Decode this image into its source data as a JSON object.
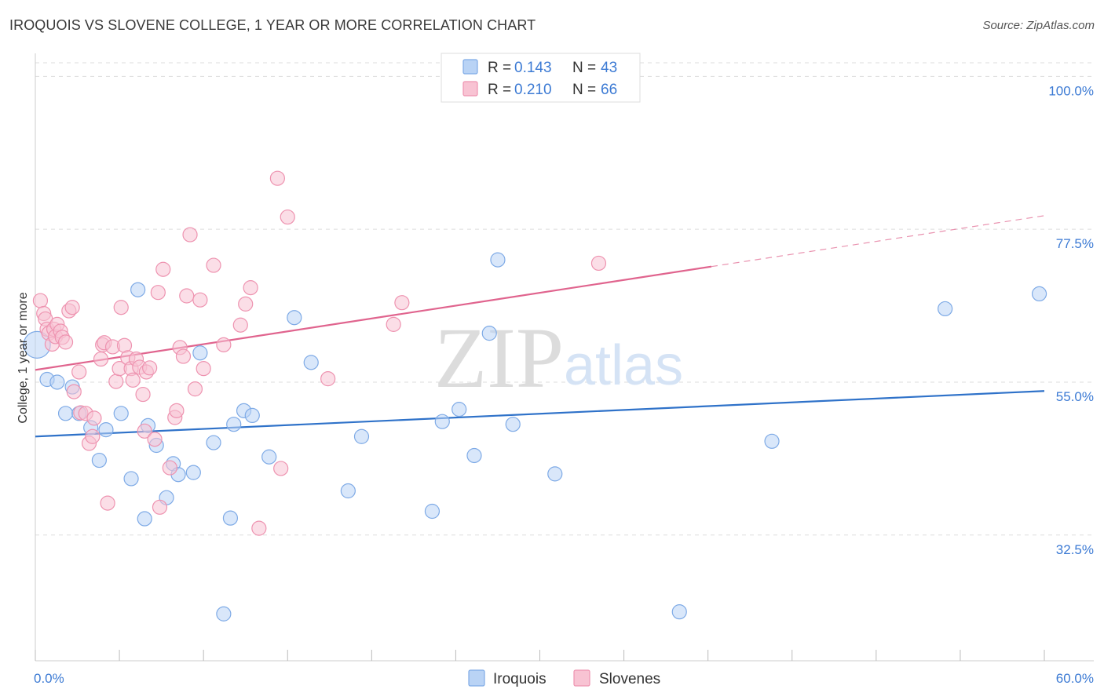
{
  "title": "IROQUOIS VS SLOVENE COLLEGE, 1 YEAR OR MORE CORRELATION CHART",
  "source": "Source: ZipAtlas.com",
  "watermark": {
    "zip": "ZIP",
    "atlas": "atlas"
  },
  "colors": {
    "iroquois_fill": "#b9d3f5",
    "iroquois_stroke": "#7eaae6",
    "iroquois_line": "#2f72c9",
    "slovenes_fill": "#f8c3d3",
    "slovenes_stroke": "#ee93b0",
    "slovenes_line": "#e0648e",
    "tick": "#3d7bd4",
    "grid": "#dddddd"
  },
  "legend": {
    "iroquois": {
      "r_label": "R = ",
      "r_value": "0.143",
      "n_label": "N = ",
      "n_value": "43"
    },
    "slovenes": {
      "r_label": "R = ",
      "r_value": "0.210",
      "n_label": "N = ",
      "n_value": "66"
    }
  },
  "chart_data": {
    "type": "scatter",
    "title": "IROQUOIS VS SLOVENE COLLEGE, 1 YEAR OR MORE CORRELATION CHART",
    "xlabel": "",
    "ylabel": "College, 1 year or more",
    "xlim": [
      0,
      60
    ],
    "ylim": [
      14,
      102
    ],
    "x_tick_labels": [
      "0.0%",
      "60.0%"
    ],
    "y_ticks": [
      32.5,
      55.0,
      77.5,
      100.0
    ],
    "y_tick_labels": [
      "32.5%",
      "55.0%",
      "77.5%",
      "100.0%"
    ],
    "legend_position": "top-center",
    "series": [
      {
        "name": "Iroquois",
        "r": 0.143,
        "n": 43,
        "trend": {
          "x0": 0,
          "y0": 47.0,
          "x1": 60,
          "y1": 53.7,
          "solid_until": 60
        },
        "points": [
          [
            0.1,
            60.5
          ],
          [
            0.7,
            55.4
          ],
          [
            1.3,
            55.0
          ],
          [
            1.8,
            50.4
          ],
          [
            2.2,
            54.3
          ],
          [
            2.6,
            50.4
          ],
          [
            3.3,
            48.3
          ],
          [
            3.8,
            43.5
          ],
          [
            4.2,
            48.0
          ],
          [
            5.1,
            50.4
          ],
          [
            5.7,
            40.8
          ],
          [
            6.1,
            68.6
          ],
          [
            6.5,
            34.9
          ],
          [
            6.7,
            48.6
          ],
          [
            7.2,
            45.7
          ],
          [
            7.8,
            38.0
          ],
          [
            8.2,
            43.0
          ],
          [
            8.5,
            41.4
          ],
          [
            9.4,
            41.7
          ],
          [
            9.8,
            59.3
          ],
          [
            10.6,
            46.1
          ],
          [
            11.2,
            20.9
          ],
          [
            11.6,
            35.0
          ],
          [
            11.8,
            48.8
          ],
          [
            12.4,
            50.8
          ],
          [
            12.9,
            50.1
          ],
          [
            13.9,
            44.0
          ],
          [
            15.4,
            64.5
          ],
          [
            16.4,
            57.9
          ],
          [
            18.6,
            39.0
          ],
          [
            19.4,
            47.0
          ],
          [
            23.6,
            36.0
          ],
          [
            24.2,
            49.2
          ],
          [
            25.2,
            51.0
          ],
          [
            26.1,
            44.2
          ],
          [
            27.0,
            62.2
          ],
          [
            27.5,
            73.0
          ],
          [
            28.4,
            48.8
          ],
          [
            30.9,
            41.5
          ],
          [
            38.3,
            21.2
          ],
          [
            43.8,
            46.3
          ],
          [
            54.1,
            65.8
          ],
          [
            59.7,
            68.0
          ]
        ]
      },
      {
        "name": "Slovenes",
        "r": 0.21,
        "n": 66,
        "trend": {
          "x0": 0,
          "y0": 56.8,
          "x1": 60,
          "y1": 79.5,
          "solid_until": 40.2
        },
        "points": [
          [
            0.3,
            67.0
          ],
          [
            0.5,
            65.1
          ],
          [
            0.6,
            64.3
          ],
          [
            0.7,
            62.8
          ],
          [
            0.8,
            62.2
          ],
          [
            1.0,
            60.6
          ],
          [
            1.1,
            62.8
          ],
          [
            1.2,
            61.7
          ],
          [
            1.3,
            63.5
          ],
          [
            1.5,
            62.5
          ],
          [
            1.6,
            61.6
          ],
          [
            1.8,
            60.9
          ],
          [
            2.0,
            65.5
          ],
          [
            2.2,
            66.0
          ],
          [
            2.3,
            53.6
          ],
          [
            2.6,
            56.5
          ],
          [
            2.7,
            50.5
          ],
          [
            3.0,
            50.4
          ],
          [
            3.2,
            46.0
          ],
          [
            3.4,
            47.0
          ],
          [
            3.5,
            49.7
          ],
          [
            3.9,
            58.4
          ],
          [
            4.0,
            60.5
          ],
          [
            4.1,
            60.8
          ],
          [
            4.3,
            37.2
          ],
          [
            4.6,
            60.2
          ],
          [
            4.8,
            55.1
          ],
          [
            5.0,
            57.0
          ],
          [
            5.1,
            66.0
          ],
          [
            5.3,
            60.4
          ],
          [
            5.5,
            58.6
          ],
          [
            5.7,
            57.0
          ],
          [
            5.8,
            55.3
          ],
          [
            6.0,
            58.4
          ],
          [
            6.2,
            57.2
          ],
          [
            6.4,
            53.2
          ],
          [
            6.5,
            47.8
          ],
          [
            6.6,
            56.5
          ],
          [
            6.8,
            57.1
          ],
          [
            7.1,
            46.6
          ],
          [
            7.3,
            68.2
          ],
          [
            7.4,
            36.6
          ],
          [
            7.6,
            71.6
          ],
          [
            8.0,
            42.4
          ],
          [
            8.3,
            49.8
          ],
          [
            8.4,
            50.8
          ],
          [
            8.6,
            60.1
          ],
          [
            8.8,
            58.8
          ],
          [
            9.0,
            67.7
          ],
          [
            9.2,
            76.7
          ],
          [
            9.5,
            54.0
          ],
          [
            9.8,
            67.1
          ],
          [
            10.0,
            57.0
          ],
          [
            10.6,
            72.2
          ],
          [
            11.2,
            60.5
          ],
          [
            12.2,
            63.4
          ],
          [
            12.5,
            66.5
          ],
          [
            12.8,
            68.9
          ],
          [
            13.3,
            33.5
          ],
          [
            14.4,
            85.0
          ],
          [
            14.6,
            42.3
          ],
          [
            15.0,
            79.3
          ],
          [
            17.4,
            55.5
          ],
          [
            21.3,
            63.5
          ],
          [
            21.8,
            66.7
          ],
          [
            33.5,
            72.5
          ]
        ]
      }
    ]
  },
  "bottom_legend": {
    "iroquois": "Iroquois",
    "slovenes": "Slovenes"
  }
}
